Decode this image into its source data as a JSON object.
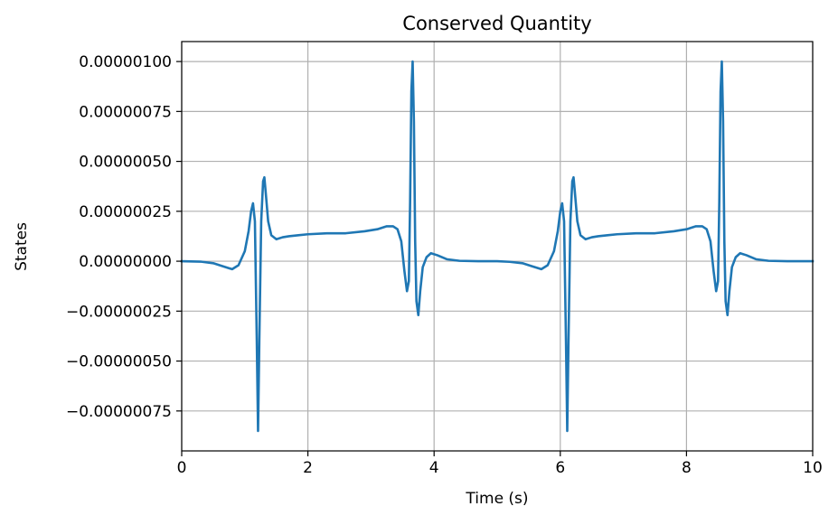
{
  "chart_data": {
    "type": "line",
    "title": "Conserved Quantity",
    "xlabel": "Time (s)",
    "ylabel": "States",
    "xlim": [
      0,
      10
    ],
    "ylim": [
      -9.5e-07,
      1.1e-06
    ],
    "grid": true,
    "x_ticks": [
      0,
      2,
      4,
      6,
      8,
      10
    ],
    "x_tick_labels": [
      "0",
      "2",
      "4",
      "6",
      "8",
      "10"
    ],
    "y_ticks": [
      -7.5e-07,
      -5e-07,
      -2.5e-07,
      0,
      2.5e-07,
      5e-07,
      7.5e-07,
      1e-06
    ],
    "y_tick_labels": [
      "−0.00000075",
      "−0.00000050",
      "−0.00000025",
      "0.00000000",
      "0.00000025",
      "0.00000050",
      "0.00000075",
      "0.00000100"
    ],
    "series": [
      {
        "color": "#1f77b4",
        "x": [
          0,
          0.3,
          0.5,
          0.65,
          0.8,
          0.9,
          1.0,
          1.06,
          1.1,
          1.13,
          1.16,
          1.19,
          1.21,
          1.23,
          1.26,
          1.29,
          1.31,
          1.33,
          1.37,
          1.42,
          1.5,
          1.6,
          1.7,
          1.85,
          2.0,
          2.3,
          2.6,
          2.9,
          3.1,
          3.25,
          3.35,
          3.42,
          3.48,
          3.53,
          3.57,
          3.6,
          3.62,
          3.64,
          3.66,
          3.68,
          3.7,
          3.72,
          3.75,
          3.78,
          3.82,
          3.88,
          3.95,
          4.05,
          4.2,
          4.4,
          4.7,
          5.0,
          5.2,
          5.4,
          5.55,
          5.7,
          5.8,
          5.9,
          5.96,
          6.0,
          6.03,
          6.06,
          6.09,
          6.11,
          6.13,
          6.16,
          6.19,
          6.21,
          6.23,
          6.27,
          6.32,
          6.4,
          6.5,
          6.6,
          6.75,
          6.9,
          7.2,
          7.5,
          7.8,
          8.0,
          8.15,
          8.25,
          8.32,
          8.38,
          8.43,
          8.47,
          8.5,
          8.52,
          8.54,
          8.56,
          8.58,
          8.6,
          8.62,
          8.65,
          8.68,
          8.72,
          8.78,
          8.85,
          8.95,
          9.1,
          9.3,
          9.6,
          10.0
        ],
        "y": [
          0,
          -2e-09,
          -1e-08,
          -2.5e-08,
          -4e-08,
          -2e-08,
          5e-08,
          1.5e-07,
          2.5e-07,
          2.9e-07,
          2e-07,
          -4e-07,
          -8.5e-07,
          -4e-07,
          2e-07,
          4e-07,
          4.2e-07,
          3.5e-07,
          2e-07,
          1.3e-07,
          1.1e-07,
          1.2e-07,
          1.25e-07,
          1.3e-07,
          1.35e-07,
          1.4e-07,
          1.4e-07,
          1.5e-07,
          1.6e-07,
          1.75e-07,
          1.75e-07,
          1.6e-07,
          1e-07,
          -5e-08,
          -1.5e-07,
          -1e-07,
          3e-07,
          8.5e-07,
          1e-06,
          7e-07,
          1e-07,
          -2e-07,
          -2.7e-07,
          -1.5e-07,
          -3e-08,
          2e-08,
          4e-08,
          3e-08,
          1e-08,
          2e-09,
          0,
          0,
          -3e-09,
          -1e-08,
          -2.5e-08,
          -4e-08,
          -2e-08,
          5e-08,
          1.5e-07,
          2.5e-07,
          2.9e-07,
          2e-07,
          -4e-07,
          -8.5e-07,
          -4e-07,
          2e-07,
          4e-07,
          4.2e-07,
          3.5e-07,
          2e-07,
          1.3e-07,
          1.1e-07,
          1.2e-07,
          1.25e-07,
          1.3e-07,
          1.35e-07,
          1.4e-07,
          1.4e-07,
          1.5e-07,
          1.6e-07,
          1.75e-07,
          1.75e-07,
          1.6e-07,
          1e-07,
          -5e-08,
          -1.5e-07,
          -1e-07,
          3e-07,
          8.5e-07,
          1e-06,
          7e-07,
          1e-07,
          -2e-07,
          -2.7e-07,
          -1.5e-07,
          -3e-08,
          2e-08,
          4e-08,
          3e-08,
          1e-08,
          2e-09,
          0,
          0
        ]
      }
    ]
  }
}
